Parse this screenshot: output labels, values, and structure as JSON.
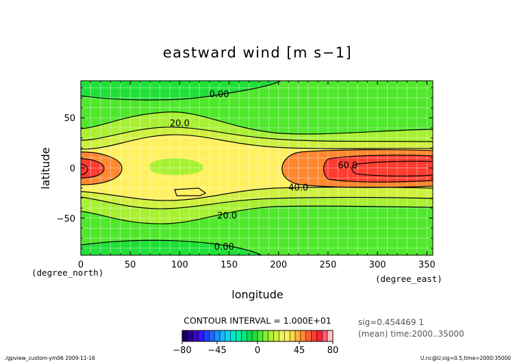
{
  "chart_data": {
    "type": "heatmap",
    "title": "eastward wind [m s−1]",
    "xlabel": "longitude",
    "ylabel": "latitude",
    "x_units": "(degree_east)",
    "y_units": "(degree_north)",
    "xlim": [
      0,
      356
    ],
    "ylim": [
      -87,
      87
    ],
    "x_ticks": [
      0,
      50,
      100,
      150,
      200,
      250,
      300,
      350
    ],
    "y_ticks": [
      50,
      0,
      -50
    ],
    "grid": true,
    "contour_interval_text": "CONTOUR INTERVAL = 1.000E+01",
    "contour_labels": [
      {
        "text": "0.00",
        "x": 140,
        "y": 74
      },
      {
        "text": "20.0",
        "x": 100,
        "y": 45
      },
      {
        "text": "60.0",
        "x": 270,
        "y": 3
      },
      {
        "text": "40.0",
        "x": 220,
        "y": -19
      },
      {
        "text": "20.0",
        "x": 148,
        "y": -47
      },
      {
        "text": "0.00",
        "x": 145,
        "y": -78
      }
    ],
    "legend": {
      "placement": "bottom-center",
      "tick_labels": [
        "−80",
        "−45",
        "0",
        "45",
        "80"
      ],
      "tick_values": [
        -80,
        -45,
        0,
        45,
        80
      ],
      "range": [
        -80,
        80
      ],
      "colors": [
        "#12005a",
        "#2a0090",
        "#3b00c8",
        "#3515ff",
        "#2040ff",
        "#1f68ff",
        "#1a90ff",
        "#18b4ff",
        "#10d6f0",
        "#00e8d0",
        "#00ecaa",
        "#00e878",
        "#00e050",
        "#20e038",
        "#50e82c",
        "#80f030",
        "#a8f034",
        "#d0f040",
        "#f0f05a",
        "#fff060",
        "#ffd646",
        "#ffb038",
        "#ff8830",
        "#ff6030",
        "#ff3c30",
        "#ff2030",
        "#ff5a78",
        "#ffc8c8"
      ]
    },
    "info": [
      "sig=0.454469 1",
      "(mean) time:2000..35000"
    ]
  },
  "footer": {
    "left": "./gpview_custom-ym06  2009-11-16",
    "right": "U.nc@U,sig=0.5,time=2000:35000"
  }
}
